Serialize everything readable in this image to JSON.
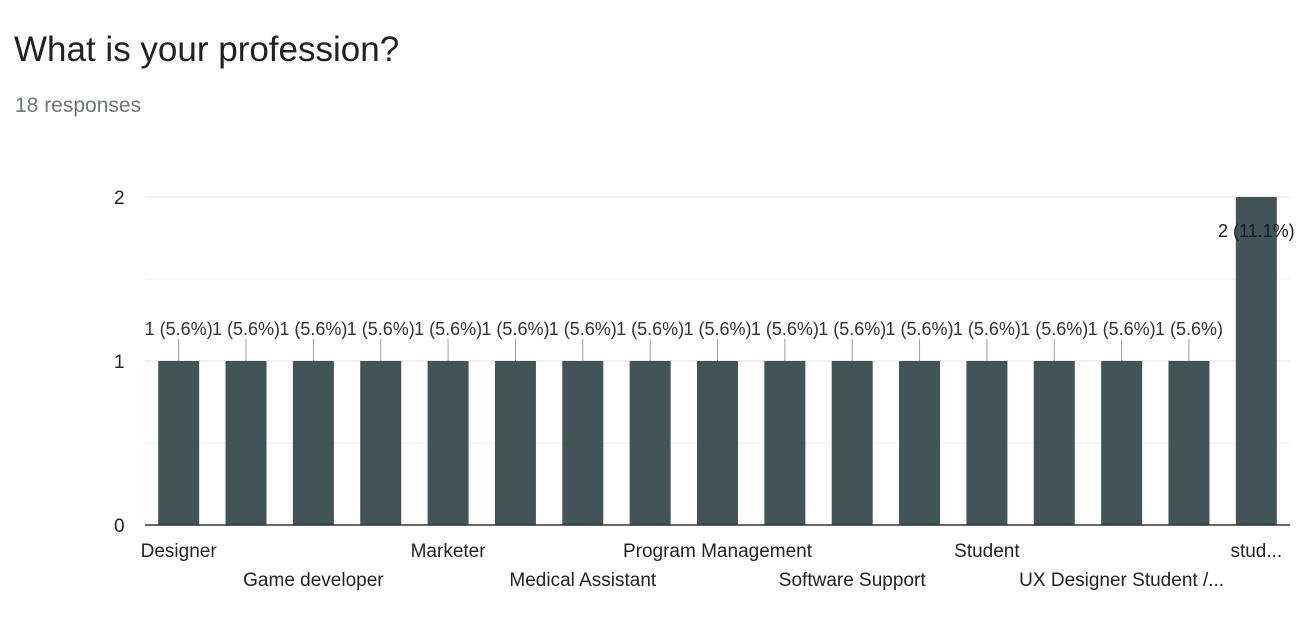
{
  "question": {
    "title": "What is your profession?",
    "responses": "18 responses"
  },
  "chart_data": {
    "type": "bar",
    "title": "",
    "xlabel": "",
    "ylabel": "",
    "categories": [
      "Designer",
      "",
      "Game developer",
      "",
      "Marketer",
      "",
      "Medical Assistant",
      "",
      "Program Management",
      "",
      "Software Support",
      "",
      "Student",
      "",
      "UX Designer Student /...",
      "",
      "stud..."
    ],
    "values": [
      1,
      1,
      1,
      1,
      1,
      1,
      1,
      1,
      1,
      1,
      1,
      1,
      1,
      1,
      1,
      1,
      2
    ],
    "data_labels": [
      "1 (5.6%)",
      "1 (5.6%)",
      "1 (5.6%)",
      "1 (5.6%)",
      "1 (5.6%)",
      "1 (5.6%)",
      "1 (5.6%)",
      "1 (5.6%)",
      "1 (5.6%)",
      "1 (5.6%)",
      "1 (5.6%)",
      "1 (5.6%)",
      "1 (5.6%)",
      "1 (5.6%)",
      "1 (5.6%)",
      "1 (5.6%)",
      "2 (11.1%)"
    ],
    "y_ticks": [
      "0",
      "1",
      "2"
    ],
    "ylim": [
      0,
      2
    ],
    "grid": true,
    "bar_color": "#435459"
  }
}
